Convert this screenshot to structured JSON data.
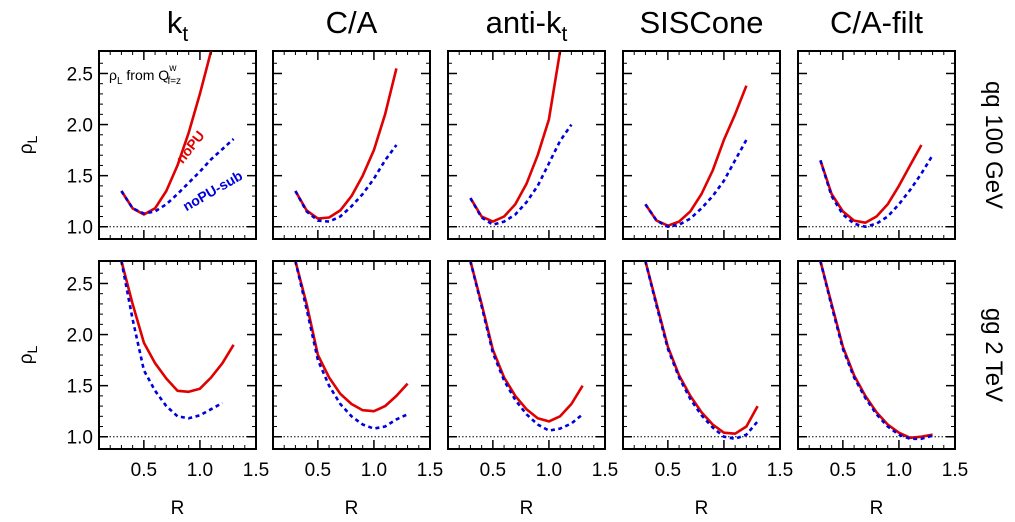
{
  "chart_data": {
    "type": "line",
    "columns": [
      {
        "title_main": "k",
        "title_sub": "t"
      },
      {
        "title_main": "C/A",
        "title_sub": ""
      },
      {
        "title_main": "anti-k",
        "title_sub": "t"
      },
      {
        "title_main": "SISCone",
        "title_sub": ""
      },
      {
        "title_main": "C/A-filt",
        "title_sub": ""
      }
    ],
    "rows": [
      {
        "label": "qq 100 GeV"
      },
      {
        "label": "gg 2 TeV"
      }
    ],
    "xlabel": "R",
    "ylabel_main": "ρ",
    "ylabel_sub": "L",
    "xlim": [
      0.1,
      1.5
    ],
    "ylim": [
      0.88,
      2.72
    ],
    "xticks": [
      0.5,
      1.0,
      1.5
    ],
    "xticklabels": [
      "0.5",
      "1.0",
      "1.5"
    ],
    "yticks": [
      1.0,
      1.5,
      2.0,
      2.5
    ],
    "yticklabels": [
      "1.0",
      "1.5",
      "2.0",
      "2.5"
    ],
    "reference_line": 1.0,
    "series_styles": [
      {
        "key": "noPU",
        "color": "#e00000",
        "dash": "solid"
      },
      {
        "key": "noPU-sub",
        "color": "#0000dd",
        "dash": "dotted"
      }
    ],
    "annotation": {
      "pre": "ρ",
      "pre_sub": "L",
      "mid": " from Q",
      "sup": "w",
      "sub": "f=z"
    },
    "curve_labels": {
      "noPU": "noPU",
      "noPU-sub": "noPU-sub"
    },
    "x": [
      0.3,
      0.4,
      0.5,
      0.6,
      0.7,
      0.8,
      0.9,
      1.0,
      1.1,
      1.2,
      1.3,
      1.4,
      1.5
    ],
    "panels": [
      {
        "row": 0,
        "col": 0,
        "series": [
          {
            "name": "noPU",
            "values": [
              1.35,
              1.18,
              1.12,
              1.18,
              1.35,
              1.6,
              1.92,
              2.3,
              2.72,
              null,
              null,
              null,
              null
            ]
          },
          {
            "name": "noPU-sub",
            "values": [
              1.35,
              1.18,
              1.13,
              1.15,
              1.22,
              1.32,
              1.43,
              1.54,
              1.66,
              1.76,
              1.86,
              null,
              null
            ]
          }
        ]
      },
      {
        "row": 0,
        "col": 1,
        "series": [
          {
            "name": "noPU",
            "values": [
              1.35,
              1.16,
              1.08,
              1.09,
              1.16,
              1.3,
              1.5,
              1.75,
              2.1,
              2.55,
              null,
              null,
              null
            ]
          },
          {
            "name": "noPU-sub",
            "values": [
              1.35,
              1.15,
              1.06,
              1.05,
              1.1,
              1.2,
              1.32,
              1.47,
              1.65,
              1.8,
              null,
              null,
              null
            ]
          }
        ]
      },
      {
        "row": 0,
        "col": 2,
        "series": [
          {
            "name": "noPU",
            "values": [
              1.28,
              1.1,
              1.05,
              1.1,
              1.22,
              1.42,
              1.7,
              2.05,
              2.72,
              null,
              null,
              null,
              null
            ]
          },
          {
            "name": "noPU-sub",
            "values": [
              1.28,
              1.09,
              1.02,
              1.05,
              1.12,
              1.24,
              1.4,
              1.62,
              1.84,
              2.0,
              null,
              null,
              null
            ]
          }
        ]
      },
      {
        "row": 0,
        "col": 3,
        "series": [
          {
            "name": "noPU",
            "values": [
              1.22,
              1.06,
              1.01,
              1.05,
              1.15,
              1.32,
              1.55,
              1.85,
              2.1,
              2.38,
              null,
              null,
              null
            ]
          },
          {
            "name": "noPU-sub",
            "values": [
              1.22,
              1.06,
              1.0,
              1.02,
              1.08,
              1.18,
              1.3,
              1.45,
              1.65,
              1.85,
              null,
              null,
              null
            ]
          }
        ]
      },
      {
        "row": 0,
        "col": 4,
        "series": [
          {
            "name": "noPU",
            "values": [
              1.65,
              1.32,
              1.15,
              1.06,
              1.04,
              1.1,
              1.22,
              1.4,
              1.6,
              1.8,
              null,
              null,
              null
            ]
          },
          {
            "name": "noPU-sub",
            "values": [
              1.65,
              1.3,
              1.12,
              1.03,
              1.0,
              1.03,
              1.1,
              1.22,
              1.36,
              1.52,
              1.7,
              null,
              null
            ]
          }
        ]
      },
      {
        "row": 1,
        "col": 0,
        "series": [
          {
            "name": "noPU",
            "values": [
              2.72,
              2.3,
              1.92,
              1.72,
              1.57,
              1.45,
              1.44,
              1.47,
              1.58,
              1.72,
              1.9,
              null,
              null
            ]
          },
          {
            "name": "noPU-sub",
            "values": [
              2.72,
              2.15,
              1.65,
              1.45,
              1.3,
              1.2,
              1.18,
              1.21,
              1.27,
              1.33,
              null,
              null,
              null
            ]
          }
        ]
      },
      {
        "row": 1,
        "col": 1,
        "series": [
          {
            "name": "noPU",
            "values": [
              2.72,
              2.3,
              1.8,
              1.58,
              1.42,
              1.32,
              1.26,
              1.25,
              1.3,
              1.4,
              1.52,
              null,
              null
            ]
          },
          {
            "name": "noPU-sub",
            "values": [
              2.72,
              2.25,
              1.75,
              1.5,
              1.32,
              1.2,
              1.12,
              1.08,
              1.1,
              1.17,
              1.22,
              null,
              null
            ]
          }
        ]
      },
      {
        "row": 1,
        "col": 2,
        "series": [
          {
            "name": "noPU",
            "values": [
              2.72,
              2.3,
              1.85,
              1.58,
              1.4,
              1.27,
              1.18,
              1.15,
              1.2,
              1.32,
              1.5,
              null,
              null
            ]
          },
          {
            "name": "noPU-sub",
            "values": [
              2.72,
              2.28,
              1.82,
              1.55,
              1.36,
              1.22,
              1.12,
              1.06,
              1.08,
              1.13,
              1.22,
              null,
              null
            ]
          }
        ]
      },
      {
        "row": 1,
        "col": 3,
        "series": [
          {
            "name": "noPU",
            "values": [
              2.72,
              2.3,
              1.88,
              1.6,
              1.4,
              1.24,
              1.12,
              1.04,
              1.03,
              1.1,
              1.3,
              null,
              null
            ]
          },
          {
            "name": "noPU-sub",
            "values": [
              2.72,
              2.28,
              1.86,
              1.58,
              1.37,
              1.21,
              1.09,
              1.0,
              0.98,
              1.02,
              1.15,
              null,
              null
            ]
          }
        ]
      },
      {
        "row": 1,
        "col": 4,
        "series": [
          {
            "name": "noPU",
            "values": [
              2.72,
              2.3,
              1.88,
              1.6,
              1.4,
              1.24,
              1.12,
              1.04,
              0.99,
              1.0,
              1.02,
              null,
              null
            ]
          },
          {
            "name": "noPU-sub",
            "values": [
              2.72,
              2.28,
              1.86,
              1.58,
              1.38,
              1.22,
              1.1,
              1.02,
              0.98,
              0.98,
              1.01,
              null,
              null
            ]
          }
        ]
      }
    ]
  }
}
